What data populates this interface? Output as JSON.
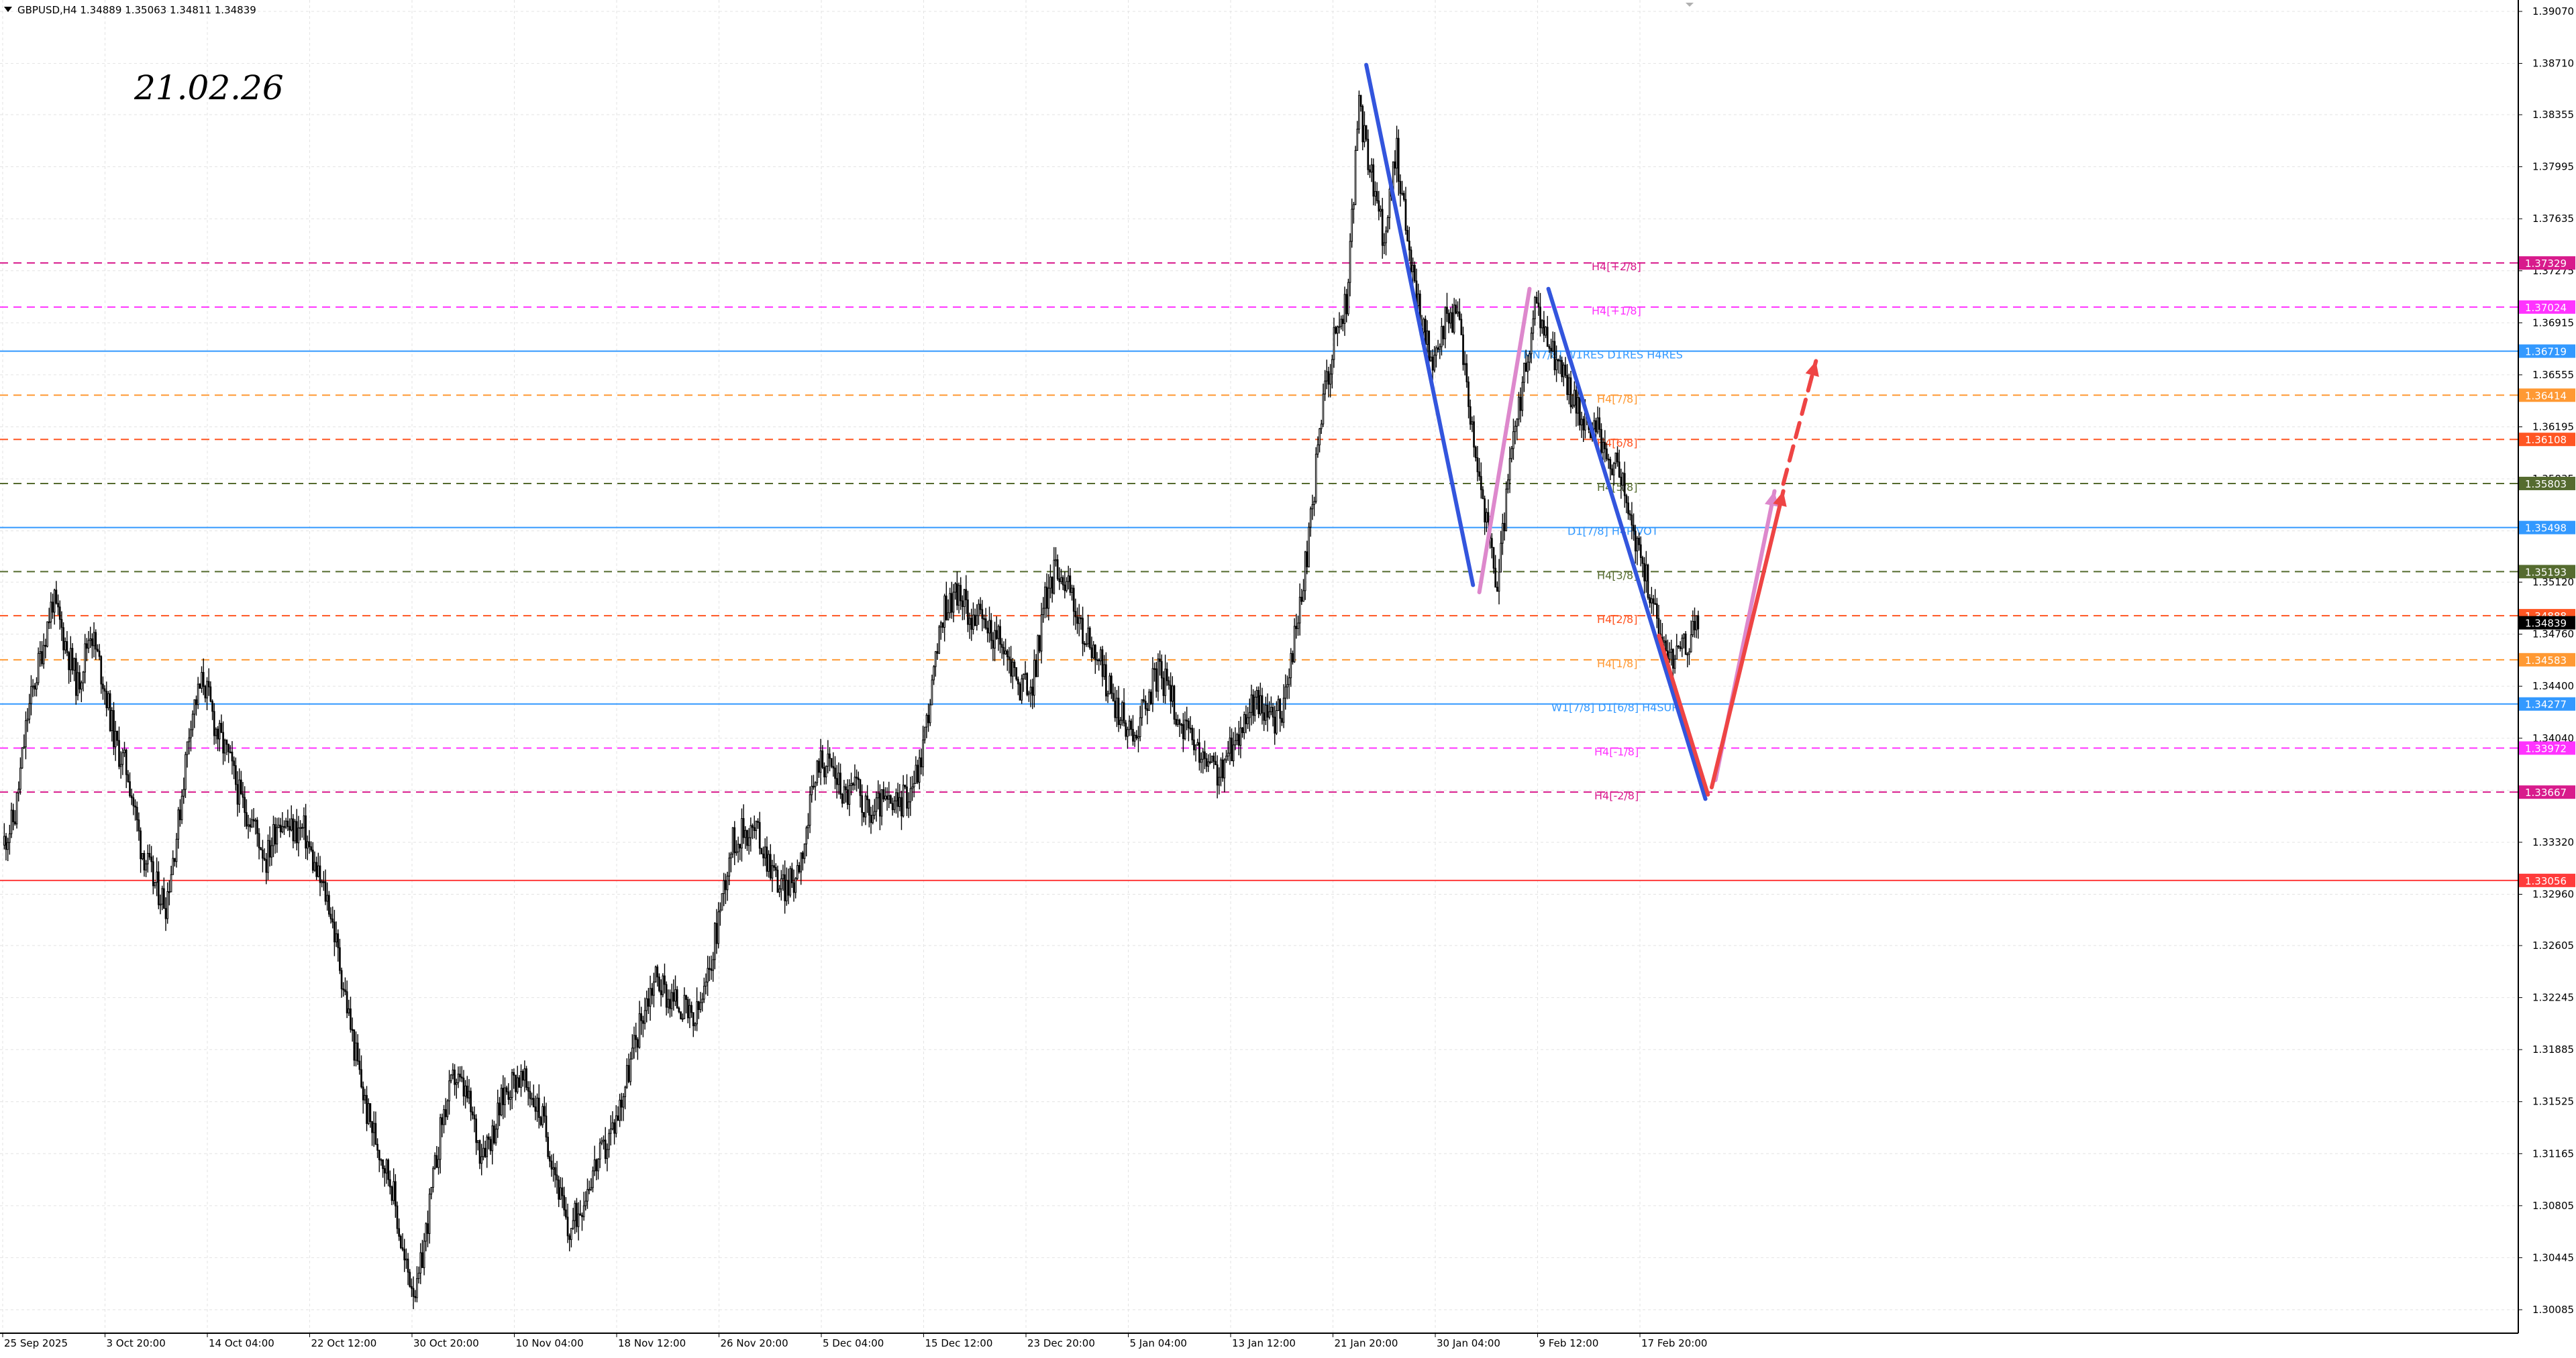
{
  "header": {
    "symbol_info": "GBPUSD,H4  1.34889 1.35063 1.34811 1.34839"
  },
  "annotation_date": "21.02.26",
  "chart_data": {
    "type": "candlestick",
    "symbol": "GBPUSD",
    "timeframe": "H4",
    "ohlc_last": {
      "open": 1.34889,
      "high": 1.35063,
      "low": 1.34811,
      "close": 1.34839
    },
    "ylim": [
      1.30085,
      1.3907
    ],
    "y_ticks": [
      "1.39070",
      "1.38710",
      "1.38355",
      "1.37995",
      "1.37635",
      "1.37275",
      "1.36915",
      "1.36555",
      "1.36195",
      "1.35835",
      "1.35475",
      "1.35120",
      "1.34760",
      "1.34400",
      "1.34040",
      "1.33680",
      "1.33320",
      "1.32960",
      "1.32605",
      "1.32245",
      "1.31885",
      "1.31525",
      "1.31165",
      "1.30805",
      "1.30445",
      "1.30085"
    ],
    "x_ticks": [
      "25 Sep 2025",
      "3 Oct 20:00",
      "14 Oct 04:00",
      "22 Oct 12:00",
      "30 Oct 20:00",
      "10 Nov 04:00",
      "18 Nov 12:00",
      "26 Nov 20:00",
      "5 Dec 04:00",
      "15 Dec 12:00",
      "23 Dec 20:00",
      "5 Jan 04:00",
      "13 Jan 12:00",
      "21 Jan 20:00",
      "30 Jan 04:00",
      "9 Feb 12:00",
      "17 Feb 20:00"
    ],
    "price_path": [
      [
        0,
        1.333
      ],
      [
        1,
        1.335
      ],
      [
        2,
        1.342
      ],
      [
        3,
        1.346
      ],
      [
        4,
        1.35
      ],
      [
        5,
        1.347
      ],
      [
        6,
        1.344
      ],
      [
        7,
        1.348
      ],
      [
        8,
        1.3445
      ],
      [
        9,
        1.34
      ],
      [
        10,
        1.338
      ],
      [
        11,
        1.333
      ],
      [
        12,
        1.3305
      ],
      [
        13,
        1.329
      ],
      [
        14,
        1.3345
      ],
      [
        15,
        1.342
      ],
      [
        16,
        1.3445
      ],
      [
        17,
        1.341
      ],
      [
        18,
        1.339
      ],
      [
        19,
        1.336
      ],
      [
        20,
        1.3345
      ],
      [
        21,
        1.332
      ],
      [
        22,
        1.335
      ],
      [
        23,
        1.334
      ],
      [
        24,
        1.334
      ],
      [
        25,
        1.331
      ],
      [
        26,
        1.329
      ],
      [
        27,
        1.324
      ],
      [
        28,
        1.319
      ],
      [
        29,
        1.3145
      ],
      [
        30,
        1.312
      ],
      [
        31,
        1.3095
      ],
      [
        32,
        1.304
      ],
      [
        33,
        1.302
      ],
      [
        34,
        1.308
      ],
      [
        35,
        1.314
      ],
      [
        36,
        1.317
      ],
      [
        37,
        1.3155
      ],
      [
        38,
        1.312
      ],
      [
        39,
        1.313
      ],
      [
        40,
        1.316
      ],
      [
        41,
        1.317
      ],
      [
        42,
        1.316
      ],
      [
        43,
        1.314
      ],
      [
        44,
        1.3105
      ],
      [
        45,
        1.306
      ],
      [
        46,
        1.308
      ],
      [
        47,
        1.3105
      ],
      [
        48,
        1.312
      ],
      [
        49,
        1.3145
      ],
      [
        50,
        1.318
      ],
      [
        51,
        1.3215
      ],
      [
        52,
        1.324
      ],
      [
        53,
        1.3225
      ],
      [
        54,
        1.322
      ],
      [
        55,
        1.3205
      ],
      [
        56,
        1.323
      ],
      [
        57,
        1.328
      ],
      [
        58,
        1.333
      ],
      [
        59,
        1.334
      ],
      [
        60,
        1.334
      ],
      [
        61,
        1.332
      ],
      [
        62,
        1.33
      ],
      [
        63,
        1.3305
      ],
      [
        64,
        1.334
      ],
      [
        65,
        1.339
      ],
      [
        66,
        1.3385
      ],
      [
        67,
        1.3365
      ],
      [
        68,
        1.337
      ],
      [
        69,
        1.335
      ],
      [
        70,
        1.336
      ],
      [
        71,
        1.3355
      ],
      [
        72,
        1.3365
      ],
      [
        73,
        1.3385
      ],
      [
        74,
        1.344
      ],
      [
        75,
        1.3495
      ],
      [
        76,
        1.3505
      ],
      [
        77,
        1.349
      ],
      [
        78,
        1.3485
      ],
      [
        79,
        1.3475
      ],
      [
        80,
        1.346
      ],
      [
        81,
        1.344
      ],
      [
        82,
        1.344
      ],
      [
        83,
        1.35
      ],
      [
        84,
        1.3525
      ],
      [
        85,
        1.3505
      ],
      [
        86,
        1.3475
      ],
      [
        87,
        1.3465
      ],
      [
        88,
        1.344
      ],
      [
        89,
        1.342
      ],
      [
        90,
        1.3405
      ],
      [
        91,
        1.343
      ],
      [
        92,
        1.345
      ],
      [
        93,
        1.3435
      ],
      [
        94,
        1.341
      ],
      [
        95,
        1.3395
      ],
      [
        96,
        1.3385
      ],
      [
        97,
        1.338
      ],
      [
        98,
        1.34
      ],
      [
        99,
        1.342
      ],
      [
        100,
        1.343
      ],
      [
        101,
        1.3415
      ],
      [
        102,
        1.3425
      ],
      [
        103,
        1.348
      ],
      [
        104,
        1.354
      ],
      [
        105,
        1.363
      ],
      [
        106,
        1.368
      ],
      [
        107,
        1.3705
      ],
      [
        108,
        1.384
      ],
      [
        109,
        1.379
      ],
      [
        110,
        1.375
      ],
      [
        111,
        1.381
      ],
      [
        112,
        1.374
      ],
      [
        113,
        1.369
      ],
      [
        114,
        1.366
      ],
      [
        115,
        1.37
      ],
      [
        116,
        1.369
      ],
      [
        117,
        1.362
      ],
      [
        118,
        1.356
      ],
      [
        119,
        1.351
      ],
      [
        120,
        1.359
      ],
      [
        121,
        1.3645
      ],
      [
        122,
        1.37
      ],
      [
        123,
        1.368
      ],
      [
        124,
        1.366
      ],
      [
        125,
        1.364
      ],
      [
        126,
        1.3625
      ],
      [
        127,
        1.3615
      ],
      [
        128,
        1.36
      ],
      [
        129,
        1.358
      ],
      [
        130,
        1.354
      ],
      [
        131,
        1.351
      ],
      [
        132,
        1.3475
      ],
      [
        133,
        1.346
      ],
      [
        134,
        1.347
      ],
      [
        135,
        1.3484
      ]
    ],
    "levels": [
      {
        "price": 1.37329,
        "color": "#d81b8c",
        "style": "dashed",
        "label": "H4[+2/8]",
        "tag": "1.37329"
      },
      {
        "price": 1.37024,
        "color": "#ff33ff",
        "style": "dashed",
        "label": "H4[+1/8]",
        "tag": "1.37024"
      },
      {
        "price": 1.36719,
        "color": "#3399ff",
        "style": "solid",
        "label": "MN7/8] W1RES D1RES H4RES",
        "tag": "1.36719"
      },
      {
        "price": 1.36414,
        "color": "#ff9933",
        "style": "dashed",
        "label": "H4[7/8]",
        "tag": "1.36414"
      },
      {
        "price": 1.36108,
        "color": "#ff5522",
        "style": "dashed",
        "label": "H4[6/8]",
        "tag": "1.36108"
      },
      {
        "price": 1.35803,
        "color": "#556b2f",
        "style": "dashed",
        "label": "H4[5/8]",
        "tag": "1.35803"
      },
      {
        "price": 1.35498,
        "color": "#3399ff",
        "style": "solid",
        "label": "D1[7/8] H4PIVOT",
        "tag": "1.35498"
      },
      {
        "price": 1.35193,
        "color": "#556b2f",
        "style": "dashed",
        "label": "H4[3/8]",
        "tag": "1.35193"
      },
      {
        "price": 1.34888,
        "color": "#ff5522",
        "style": "dashed",
        "label": "H4[2/8]",
        "tag": "1.34888"
      },
      {
        "price": 1.34583,
        "color": "#ff9933",
        "style": "dashed",
        "label": "H4[1/8]",
        "tag": "1.34583"
      },
      {
        "price": 1.34277,
        "color": "#3399ff",
        "style": "solid",
        "label": "W1[7/8] D1[6/8] H4SUP",
        "tag": "1.34277"
      },
      {
        "price": 1.33972,
        "color": "#ff33ff",
        "style": "dashed",
        "label": "H4[-1/8]",
        "tag": "1.33972"
      },
      {
        "price": 1.33667,
        "color": "#d81b8c",
        "style": "dashed",
        "label": "H4[-2/8]",
        "tag": "1.33667"
      },
      {
        "price": 1.33056,
        "color": "#ff3b3b",
        "style": "solid",
        "label": "",
        "tag": "1.33056"
      }
    ],
    "current_price_tag": "1.34839",
    "drawn_lines": [
      {
        "color": "#3355dd",
        "style": "solid",
        "from": [
          108.5,
          1.387
        ],
        "to": [
          117.0,
          1.351
        ]
      },
      {
        "color": "#dd88cc",
        "style": "solid",
        "from": [
          117.5,
          1.3505
        ],
        "to": [
          121.5,
          1.3715
        ]
      },
      {
        "color": "#3355dd",
        "style": "solid",
        "from": [
          123.0,
          1.3715
        ],
        "to": [
          135.5,
          1.3362
        ]
      },
      {
        "color": "#ee4444",
        "style": "solid",
        "from": [
          131.8,
          1.3475
        ],
        "to": [
          135.7,
          1.3365
        ]
      },
      {
        "color": "#dd88cc",
        "style": "solid",
        "from": [
          136.3,
          1.3375
        ],
        "to": [
          141.0,
          1.3575
        ],
        "arrow": true
      },
      {
        "color": "#ee4444",
        "style": "solid",
        "from": [
          136.0,
          1.337
        ],
        "to": [
          141.7,
          1.3575
        ],
        "arrow": true
      },
      {
        "color": "#ee4444",
        "style": "dashed",
        "from": [
          141.7,
          1.358
        ],
        "to": [
          144.3,
          1.3665
        ],
        "arrow": true
      }
    ]
  }
}
